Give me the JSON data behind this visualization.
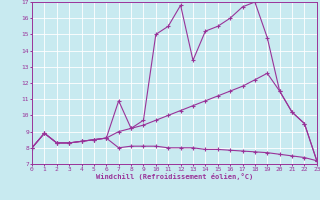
{
  "title": "",
  "xlabel": "Windchill (Refroidissement éolien,°C)",
  "xlim": [
    0,
    23
  ],
  "ylim": [
    7,
    17
  ],
  "xticks": [
    0,
    1,
    2,
    3,
    4,
    5,
    6,
    7,
    8,
    9,
    10,
    11,
    12,
    13,
    14,
    15,
    16,
    17,
    18,
    19,
    20,
    21,
    22,
    23
  ],
  "yticks": [
    7,
    8,
    9,
    10,
    11,
    12,
    13,
    14,
    15,
    16,
    17
  ],
  "background_color": "#c8eaf0",
  "grid_color": "#ffffff",
  "line_color": "#993399",
  "figsize": [
    3.2,
    2.0
  ],
  "dpi": 100,
  "line1_x": [
    0,
    1,
    2,
    3,
    4,
    5,
    6,
    7,
    8,
    9,
    10,
    11,
    12,
    13,
    14,
    15,
    16,
    17,
    18,
    19,
    20,
    21,
    22,
    23
  ],
  "line1_y": [
    8.0,
    8.9,
    8.3,
    8.3,
    8.4,
    8.5,
    8.6,
    8.0,
    8.1,
    8.1,
    8.1,
    8.0,
    8.0,
    8.0,
    7.9,
    7.9,
    7.85,
    7.8,
    7.75,
    7.7,
    7.6,
    7.5,
    7.4,
    7.2
  ],
  "line2_x": [
    0,
    1,
    2,
    3,
    4,
    5,
    6,
    7,
    8,
    9,
    10,
    11,
    12,
    13,
    14,
    15,
    16,
    17,
    18,
    19,
    20,
    21,
    22,
    23
  ],
  "line2_y": [
    8.0,
    8.9,
    8.3,
    8.3,
    8.4,
    8.5,
    8.6,
    9.0,
    9.2,
    9.4,
    9.7,
    10.0,
    10.3,
    10.6,
    10.9,
    11.2,
    11.5,
    11.8,
    12.2,
    12.6,
    11.5,
    10.2,
    9.5,
    7.2
  ],
  "line3_x": [
    0,
    1,
    2,
    3,
    4,
    5,
    6,
    7,
    8,
    9,
    10,
    11,
    12,
    13,
    14,
    15,
    16,
    17,
    18,
    19,
    20,
    21,
    22,
    23
  ],
  "line3_y": [
    8.0,
    8.9,
    8.3,
    8.3,
    8.4,
    8.5,
    8.6,
    10.9,
    9.2,
    9.7,
    15.0,
    15.5,
    16.8,
    13.4,
    15.2,
    15.5,
    16.0,
    16.7,
    17.0,
    14.8,
    11.5,
    10.2,
    9.5,
    7.2
  ]
}
